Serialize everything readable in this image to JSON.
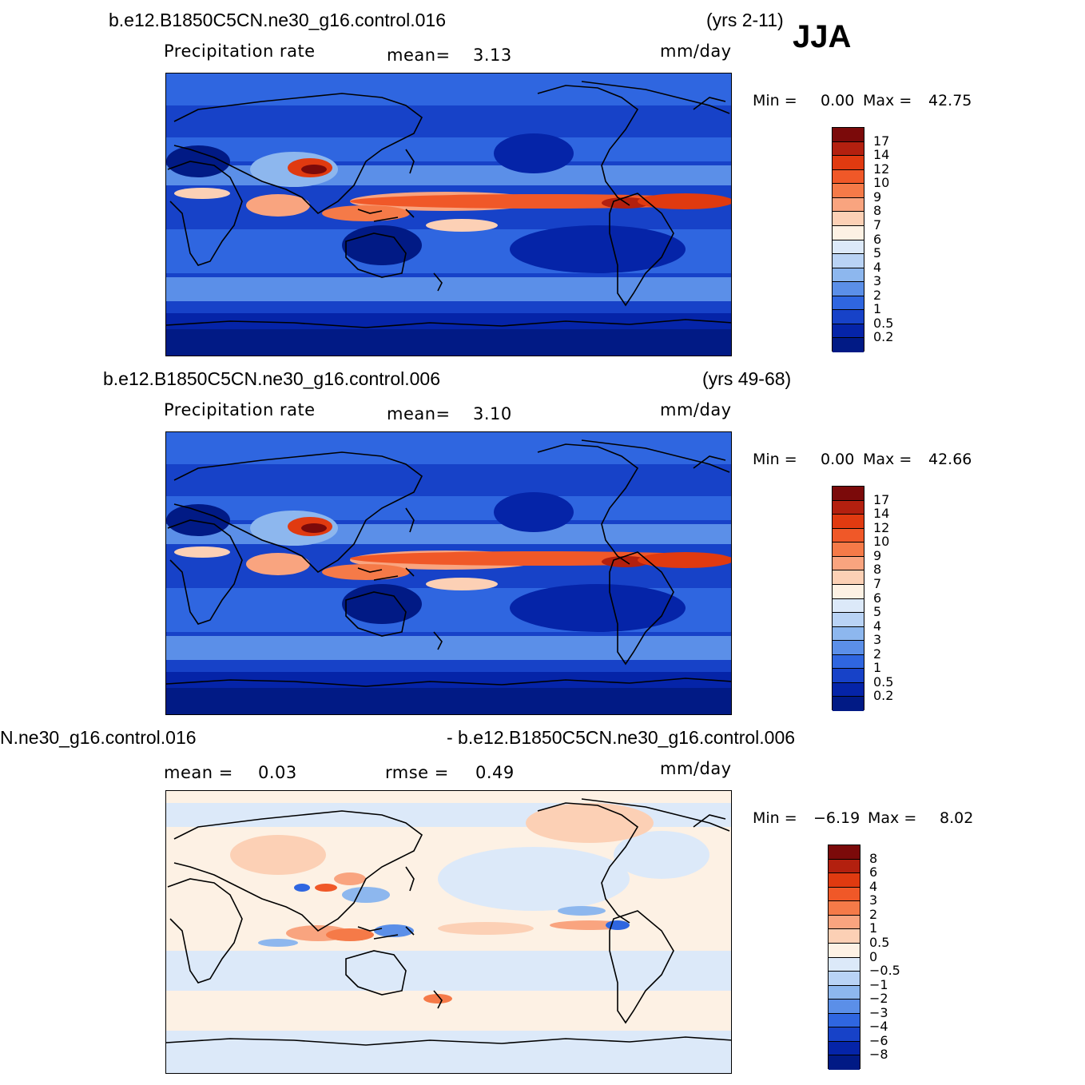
{
  "season": "JJA",
  "panels": [
    {
      "case_title": "b.e12.B1850C5CN.ne30_g16.control.016",
      "years": "(yrs 2-11)",
      "variable_label": "Precipitation  rate",
      "mean_label": "mean=",
      "mean_value": "3.13",
      "units": "mm/day",
      "min_label": "Min  =",
      "min_value": "0.00",
      "max_label": "Max  =",
      "max_value": "42.75",
      "colorbar_labels": [
        "17",
        "14",
        "12",
        "10",
        "9",
        "8",
        "7",
        "6",
        "5",
        "4",
        "3",
        "2",
        "1",
        "0.5",
        "0.2"
      ]
    },
    {
      "case_title": "b.e12.B1850C5CN.ne30_g16.control.006",
      "years": "(yrs 49-68)",
      "variable_label": "Precipitation  rate",
      "mean_label": "mean=",
      "mean_value": "3.10",
      "units": "mm/day",
      "min_label": "Min  =",
      "min_value": "0.00",
      "max_label": "Max  =",
      "max_value": "42.66",
      "colorbar_labels": [
        "17",
        "14",
        "12",
        "10",
        "9",
        "8",
        "7",
        "6",
        "5",
        "4",
        "3",
        "2",
        "1",
        "0.5",
        "0.2"
      ]
    },
    {
      "case_title_left": "N.ne30_g16.control.016",
      "case_title_right": "- b.e12.B1850C5CN.ne30_g16.control.006",
      "mean_label": "mean  =",
      "mean_value": "0.03",
      "rmse_label": "rmse  =",
      "rmse_value": "0.49",
      "units": "mm/day",
      "min_label": "Min  =",
      "min_value": "−6.19",
      "max_label": "Max  =",
      "max_value": "8.02",
      "colorbar_labels": [
        "8",
        "6",
        "4",
        "3",
        "2",
        "1",
        "0.5",
        "0",
        "−0.5",
        "−1",
        "−2",
        "−3",
        "−4",
        "−6",
        "−8"
      ]
    }
  ],
  "colors": {
    "precip_scale": [
      "#7b0a0a",
      "#b3200f",
      "#e03a10",
      "#f05828",
      "#f57a48",
      "#f9a47f",
      "#fcd0b5",
      "#fdf1e4",
      "#dce9f9",
      "#b9d3f5",
      "#8db7ee",
      "#5b8fe8",
      "#2f66e0",
      "#1742c8",
      "#0524a8",
      "#011a85"
    ],
    "diff_scale": [
      "#7b0a0a",
      "#b3200f",
      "#e03a10",
      "#f05828",
      "#f57a48",
      "#f9a47f",
      "#fcd0b5",
      "#fdf1e4",
      "#dce9f9",
      "#b9d3f5",
      "#8db7ee",
      "#5b8fe8",
      "#2f66e0",
      "#1742c8",
      "#0524a8",
      "#011a85"
    ],
    "coastline": "#000000"
  }
}
